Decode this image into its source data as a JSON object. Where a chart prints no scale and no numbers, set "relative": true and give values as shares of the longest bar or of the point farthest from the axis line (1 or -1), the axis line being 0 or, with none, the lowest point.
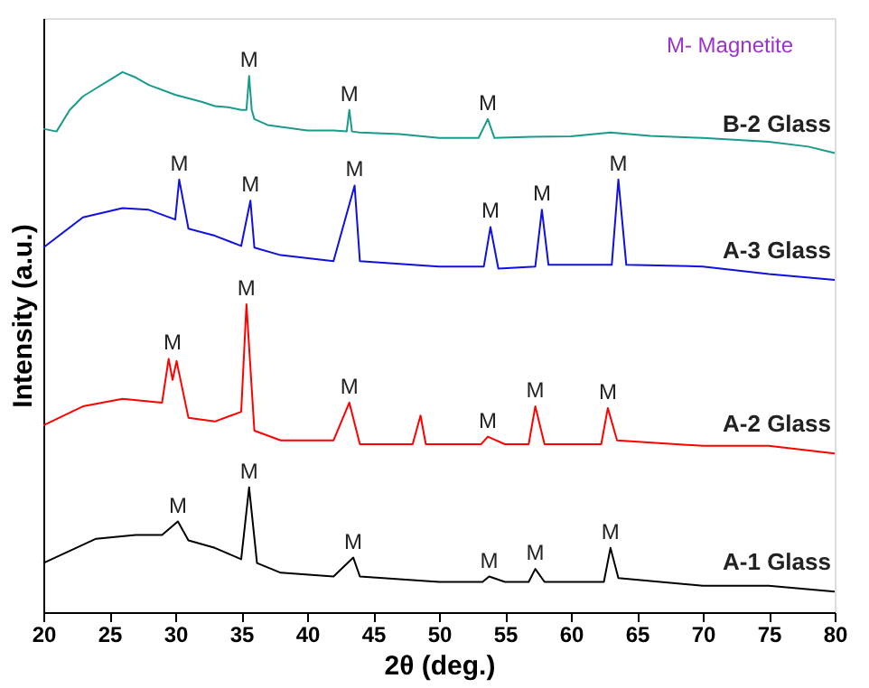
{
  "chart_data": {
    "type": "line",
    "relative": true,
    "xlabel": "2θ (deg.)",
    "ylabel": "Intensity (a.u.)",
    "xlim": [
      20,
      80
    ],
    "xticks": [
      20,
      25,
      30,
      35,
      40,
      45,
      50,
      55,
      60,
      65,
      70,
      75,
      80
    ],
    "grid": false,
    "legend": false,
    "tick_labels": "x",
    "marker": "none",
    "line_style": "solid",
    "series": [
      {
        "name": "B-2 Glass",
        "color": "#1a9a8a",
        "x": [
          20,
          21,
          22,
          23,
          24,
          25,
          26,
          27,
          28,
          30,
          32,
          33,
          34,
          35,
          35.4,
          35.6,
          35.8,
          36,
          37,
          40,
          42,
          43,
          43.2,
          43.4,
          44,
          47,
          50,
          53,
          53.7,
          54.2,
          57,
          60,
          63,
          66,
          70,
          75,
          78,
          80
        ],
        "values": [
          0.895,
          0.89,
          0.93,
          0.955,
          0.97,
          0.985,
          1.0,
          0.99,
          0.976,
          0.958,
          0.945,
          0.937,
          0.935,
          0.93,
          0.93,
          0.993,
          0.93,
          0.913,
          0.902,
          0.892,
          0.892,
          0.89,
          0.93,
          0.89,
          0.888,
          0.885,
          0.878,
          0.878,
          0.913,
          0.878,
          0.88,
          0.881,
          0.888,
          0.882,
          0.878,
          0.871,
          0.862,
          0.85
        ]
      },
      {
        "name": "A-3 Glass",
        "color": "#1010e0",
        "x": [
          20,
          23,
          26,
          28,
          30,
          30.3,
          31,
          33,
          35,
          35.7,
          36,
          38,
          42,
          43.6,
          44,
          50,
          53.4,
          53.9,
          54.5,
          57.3,
          57.8,
          58.3,
          62,
          63.1,
          63.6,
          64.2,
          70,
          75,
          80
        ],
        "values": [
          0.675,
          0.731,
          0.748,
          0.745,
          0.727,
          0.801,
          0.71,
          0.697,
          0.678,
          0.762,
          0.675,
          0.661,
          0.65,
          0.79,
          0.65,
          0.64,
          0.64,
          0.713,
          0.636,
          0.64,
          0.745,
          0.643,
          0.643,
          0.643,
          0.801,
          0.643,
          0.64,
          0.626,
          0.615
        ]
      },
      {
        "name": "A-2 Glass",
        "color": "#ff0000",
        "x": [
          20,
          23,
          26,
          29,
          29.5,
          29.8,
          30.1,
          31,
          33,
          35,
          35.4,
          36,
          38,
          42,
          43.2,
          44,
          48,
          48.6,
          49,
          53.2,
          53.7,
          55,
          56.8,
          57.3,
          58,
          62.3,
          62.8,
          63.5,
          70,
          75,
          80
        ],
        "values": [
          0.346,
          0.381,
          0.395,
          0.388,
          0.469,
          0.43,
          0.465,
          0.36,
          0.353,
          0.371,
          0.57,
          0.336,
          0.318,
          0.318,
          0.388,
          0.311,
          0.311,
          0.364,
          0.311,
          0.311,
          0.325,
          0.311,
          0.311,
          0.381,
          0.311,
          0.311,
          0.378,
          0.318,
          0.308,
          0.308,
          0.294
        ]
      },
      {
        "name": "A-1 Glass",
        "color": "#000000",
        "x": [
          20,
          24,
          27,
          29,
          30.2,
          31,
          33,
          35,
          35.6,
          36.2,
          38,
          42,
          43.5,
          44,
          50,
          53.3,
          53.8,
          55,
          56.8,
          57.3,
          58,
          62.5,
          63,
          63.6,
          70,
          75,
          80
        ],
        "values": [
          0.091,
          0.136,
          0.143,
          0.143,
          0.168,
          0.133,
          0.119,
          0.098,
          0.231,
          0.091,
          0.073,
          0.066,
          0.101,
          0.066,
          0.056,
          0.056,
          0.066,
          0.056,
          0.056,
          0.08,
          0.056,
          0.056,
          0.119,
          0.063,
          0.049,
          0.049,
          0.038
        ]
      }
    ],
    "annotations": [
      "M- Magnetite",
      {
        "text": "M",
        "x": 35.6,
        "y": 0.993
      },
      {
        "text": "M",
        "x": 43.2,
        "y": 0.93
      },
      {
        "text": "M",
        "x": 53.7,
        "y": 0.913
      },
      {
        "text": "M",
        "x": 30.3,
        "y": 0.801
      },
      {
        "text": "M",
        "x": 35.7,
        "y": 0.762
      },
      {
        "text": "M",
        "x": 43.6,
        "y": 0.79
      },
      {
        "text": "M",
        "x": 53.9,
        "y": 0.713
      },
      {
        "text": "M",
        "x": 57.8,
        "y": 0.745
      },
      {
        "text": "M",
        "x": 63.6,
        "y": 0.801
      },
      {
        "text": "M",
        "x": 29.8,
        "y": 0.469
      },
      {
        "text": "M",
        "x": 35.4,
        "y": 0.57
      },
      {
        "text": "M",
        "x": 43.2,
        "y": 0.388
      },
      {
        "text": "M",
        "x": 53.7,
        "y": 0.325
      },
      {
        "text": "M",
        "x": 57.3,
        "y": 0.381
      },
      {
        "text": "M",
        "x": 62.8,
        "y": 0.378
      },
      {
        "text": "M",
        "x": 30.2,
        "y": 0.168
      },
      {
        "text": "M",
        "x": 35.6,
        "y": 0.231
      },
      {
        "text": "M",
        "x": 43.5,
        "y": 0.101
      },
      {
        "text": "M",
        "x": 53.8,
        "y": 0.066
      },
      {
        "text": "M",
        "x": 57.3,
        "y": 0.08
      },
      {
        "text": "M",
        "x": 63,
        "y": 0.119
      }
    ]
  }
}
